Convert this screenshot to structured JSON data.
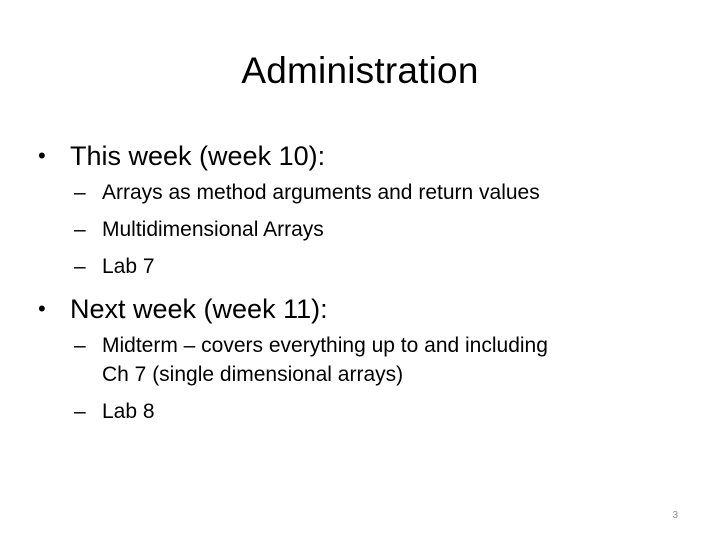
{
  "slide": {
    "title": "Administration",
    "bullet_glyph": "•",
    "dash_glyph": "–",
    "items": [
      {
        "text": "This week (week 10):",
        "subitems": [
          {
            "line1": "Arrays as method arguments and return values",
            "line2": ""
          },
          {
            "line1": "Multidimensional Arrays",
            "line2": ""
          },
          {
            "line1": "Lab 7",
            "line2": ""
          }
        ]
      },
      {
        "text": "Next week (week 11):",
        "subitems": [
          {
            "line1": "Midterm – covers everything up to and including",
            "line2": "Ch 7 (single dimensional arrays)"
          },
          {
            "line1": "Lab 8",
            "line2": ""
          }
        ]
      }
    ],
    "page_number": "3"
  }
}
